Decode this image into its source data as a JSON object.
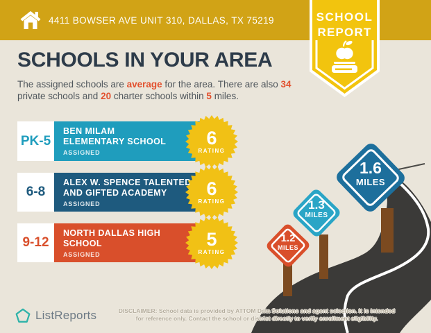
{
  "header": {
    "address": "4411 BOWSER AVE UNIT 310, DALLAS, TX 75219"
  },
  "ribbon": {
    "line1": "SCHOOL",
    "line2": "REPORT"
  },
  "page": {
    "title": "SCHOOLS IN YOUR AREA"
  },
  "intro": {
    "segments": [
      "The assigned schools are ",
      "average",
      " for the area. There are also ",
      "34",
      " private schools and ",
      "20",
      " charter schools within ",
      "5",
      " miles."
    ]
  },
  "labels": {
    "rating": "RATING",
    "assigned": "ASSIGNED",
    "miles": "MILES"
  },
  "schools": [
    {
      "grades": "PK-5",
      "name_line1": "BEN MILAM",
      "name_line2": "ELEMENTARY SCHOOL",
      "rating": "6",
      "color": "#1f9dbd"
    },
    {
      "grades": "6-8",
      "name_line1": "ALEX W. SPENCE TALENTED",
      "name_line2": "AND GIFTED ACADEMY",
      "rating": "6",
      "color": "#1e5a7e"
    },
    {
      "grades": "9-12",
      "name_line1": "NORTH DALLAS HIGH",
      "name_line2": "SCHOOL",
      "rating": "5",
      "color": "#d94f2b"
    }
  ],
  "signs": [
    {
      "miles": "1.2",
      "color": "#d94f2b"
    },
    {
      "miles": "1.3",
      "color": "#2aa5c6"
    },
    {
      "miles": "1.6",
      "color": "#1d6f9c"
    }
  ],
  "footer": {
    "brand": "ListReports",
    "disclaimer_line1": "DISCLAIMER: School data is provided by ATTOM Data Solutions and agent selection. It is intended",
    "disclaimer_line2": "for reference only. Contact the school or district directly to verify enrollment eligibility."
  },
  "colors": {
    "topbar": "#d1a316",
    "ribbon": "#f2c40e",
    "badge": "#f1c115",
    "accent": "#e2502e",
    "road": "#3b3a38",
    "post": "#7b4a20",
    "background": "#eae5da",
    "logo": "#2fb3a9"
  }
}
